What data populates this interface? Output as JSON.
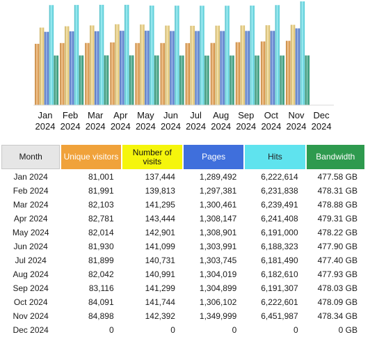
{
  "chart_data": {
    "type": "bar",
    "categories": [
      "Jan 2024",
      "Feb 2024",
      "Mar 2024",
      "Apr 2024",
      "May 2024",
      "Jun 2024",
      "Jul 2024",
      "Aug 2024",
      "Sep 2024",
      "Oct 2024",
      "Nov 2024",
      "Dec 2024"
    ],
    "series": [
      {
        "name": "Unique visitors",
        "color": "#e8973a",
        "values": [
          81001,
          81991,
          82103,
          82781,
          82014,
          81930,
          81899,
          82042,
          83116,
          84091,
          84898,
          0
        ]
      },
      {
        "name": "Number of visits",
        "color": "#f0d070",
        "values": [
          137444,
          139813,
          141295,
          143444,
          142901,
          141099,
          140731,
          140991,
          141299,
          141744,
          142392,
          0
        ]
      },
      {
        "name": "Pages",
        "color": "#4a78d8",
        "values": [
          1289492,
          1297381,
          1300461,
          1308147,
          1308901,
          1303991,
          1303745,
          1304019,
          1304899,
          1306102,
          1349999,
          0
        ]
      },
      {
        "name": "Hits",
        "color": "#55e0ec",
        "values": [
          6222614,
          6231838,
          6239491,
          6241408,
          6191000,
          6188323,
          6181490,
          6182610,
          6191307,
          6222601,
          6451987,
          0
        ]
      },
      {
        "name": "Bandwidth",
        "color": "#1f9a74",
        "values": [
          477.58,
          478.31,
          478.88,
          479.31,
          478.22,
          477.9,
          477.4,
          477.93,
          478.03,
          478.09,
          478.34,
          0
        ]
      }
    ]
  },
  "table": {
    "headers": {
      "month": "Month",
      "unique": "Unique visitors",
      "visits": "Number of visits",
      "pages": "Pages",
      "hits": "Hits",
      "bandwidth": "Bandwidth"
    },
    "rows": [
      [
        "Jan 2024",
        "81,001",
        "137,444",
        "1,289,492",
        "6,222,614",
        "477.58 GB"
      ],
      [
        "Feb 2024",
        "81,991",
        "139,813",
        "1,297,381",
        "6,231,838",
        "478.31 GB"
      ],
      [
        "Mar 2024",
        "82,103",
        "141,295",
        "1,300,461",
        "6,239,491",
        "478.88 GB"
      ],
      [
        "Apr 2024",
        "82,781",
        "143,444",
        "1,308,147",
        "6,241,408",
        "479.31 GB"
      ],
      [
        "May 2024",
        "82,014",
        "142,901",
        "1,308,901",
        "6,191,000",
        "478.22 GB"
      ],
      [
        "Jun 2024",
        "81,930",
        "141,099",
        "1,303,991",
        "6,188,323",
        "477.90 GB"
      ],
      [
        "Jul 2024",
        "81,899",
        "140,731",
        "1,303,745",
        "6,181,490",
        "477.40 GB"
      ],
      [
        "Aug 2024",
        "82,042",
        "140,991",
        "1,304,019",
        "6,182,610",
        "477.93 GB"
      ],
      [
        "Sep 2024",
        "83,116",
        "141,299",
        "1,304,899",
        "6,191,307",
        "478.03 GB"
      ],
      [
        "Oct 2024",
        "84,091",
        "141,744",
        "1,306,102",
        "6,222,601",
        "478.09 GB"
      ],
      [
        "Nov 2024",
        "84,898",
        "142,392",
        "1,349,999",
        "6,451,987",
        "478.34 GB"
      ],
      [
        "Dec 2024",
        "0",
        "0",
        "0",
        "0",
        "0 GB"
      ]
    ]
  }
}
